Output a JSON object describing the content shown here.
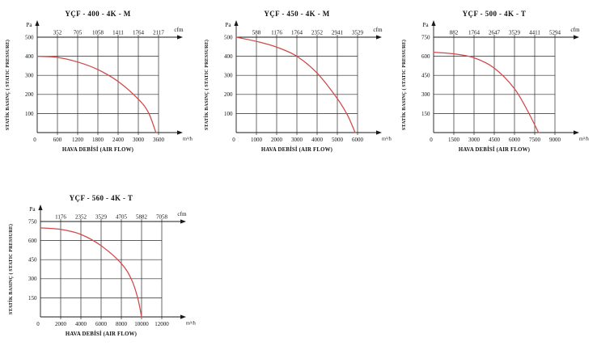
{
  "page": {
    "background": "#ffffff"
  },
  "colors": {
    "curve": "#d04848",
    "grid": "#2b2b2b",
    "axis": "#1a1a1a",
    "text": "#111111"
  },
  "labels": {
    "y_unit": "Pa",
    "top_unit": "cfm",
    "x_unit": "m³/h",
    "x_axis_label": "HAVA DEBİSİ (AIR FLOW)",
    "y_axis_label": "STATİK BASINÇ ( STATIC PRESSURE)"
  },
  "chart_data": [
    {
      "type": "line",
      "title": "YÇF - 400 - 4K - M",
      "xlabel": "HAVA DEBİSİ (AIR FLOW)",
      "ylabel": "STATİK BASINÇ ( STATIC PRESSURE)",
      "x_unit": "m³/h",
      "top_axis_unit": "cfm",
      "y_unit": "Pa",
      "grid": true,
      "xlim": [
        0,
        3600
      ],
      "ylim": [
        0,
        500
      ],
      "x_ticks": [
        0,
        600,
        1200,
        1800,
        2400,
        3000,
        3600
      ],
      "y_ticks": [
        0,
        100,
        200,
        300,
        400,
        500
      ],
      "cfm_ticks": [
        "352",
        "705",
        "1058",
        "1411",
        "1764",
        "2117"
      ],
      "series": [
        {
          "name": "fan-curve",
          "points": [
            [
              0,
              400
            ],
            [
              600,
              394
            ],
            [
              1200,
              370
            ],
            [
              1800,
              330
            ],
            [
              2400,
              268
            ],
            [
              3000,
              175
            ],
            [
              3300,
              105
            ],
            [
              3520,
              0
            ]
          ]
        }
      ]
    },
    {
      "type": "line",
      "title": "YÇF - 450 - 4K - M",
      "xlabel": "HAVA DEBİSİ (AIR FLOW)",
      "ylabel": "STATİK BASINÇ ( STATIC PRESSURE)",
      "x_unit": "m³/h",
      "top_axis_unit": "cfm",
      "y_unit": "Pa",
      "grid": true,
      "xlim": [
        0,
        6000
      ],
      "ylim": [
        0,
        500
      ],
      "x_ticks": [
        0,
        1000,
        2000,
        3000,
        4000,
        5000,
        6000
      ],
      "y_ticks": [
        0,
        100,
        200,
        300,
        400,
        500
      ],
      "cfm_ticks": [
        "588",
        "1176",
        "1764",
        "2352",
        "2941",
        "3529"
      ],
      "series": [
        {
          "name": "fan-curve",
          "points": [
            [
              0,
              500
            ],
            [
              1000,
              478
            ],
            [
              2000,
              448
            ],
            [
              3000,
              400
            ],
            [
              4000,
              312
            ],
            [
              5000,
              178
            ],
            [
              5500,
              92
            ],
            [
              5880,
              0
            ]
          ]
        }
      ]
    },
    {
      "type": "line",
      "title": "YÇF - 500 - 4K - T",
      "xlabel": "HAVA DEBİSİ (AIR FLOW)",
      "ylabel": "STATİK BASINÇ ( STATIC PRESSURE)",
      "x_unit": "m³/h",
      "top_axis_unit": "cfm",
      "y_unit": "Pa",
      "grid": true,
      "xlim": [
        0,
        9000
      ],
      "ylim": [
        0,
        750
      ],
      "x_ticks": [
        0,
        1500,
        3000,
        4500,
        6000,
        7500,
        9000
      ],
      "y_ticks": [
        0,
        150,
        300,
        450,
        600,
        750
      ],
      "cfm_ticks": [
        "882",
        "1764",
        "2647",
        "3529",
        "4411",
        "5294"
      ],
      "series": [
        {
          "name": "fan-curve",
          "points": [
            [
              0,
              632
            ],
            [
              1500,
              619
            ],
            [
              3000,
              588
            ],
            [
              4500,
              507
            ],
            [
              6000,
              345
            ],
            [
              7000,
              165
            ],
            [
              7780,
              0
            ]
          ]
        }
      ]
    },
    {
      "type": "line",
      "title": "YÇF - 560 - 4K - T",
      "xlabel": "HAVA DEBİSİ (AIR FLOW)",
      "ylabel": "STATİK BASINÇ ( STATIC PRESSURE)",
      "x_unit": "m³/h",
      "top_axis_unit": "cfm",
      "y_unit": "Pa",
      "grid": true,
      "xlim": [
        0,
        12000
      ],
      "ylim": [
        0,
        750
      ],
      "x_ticks": [
        0,
        2000,
        4000,
        6000,
        8000,
        10000,
        12000
      ],
      "y_ticks": [
        0,
        150,
        300,
        450,
        600,
        750
      ],
      "cfm_ticks": [
        "1176",
        "2352",
        "3529",
        "4705",
        "5882",
        "7058"
      ],
      "series": [
        {
          "name": "fan-curve",
          "points": [
            [
              0,
              700
            ],
            [
              2000,
              688
            ],
            [
              4000,
              648
            ],
            [
              6000,
              560
            ],
            [
              8000,
              420
            ],
            [
              9000,
              295
            ],
            [
              9600,
              155
            ],
            [
              10000,
              0
            ]
          ]
        }
      ]
    }
  ]
}
